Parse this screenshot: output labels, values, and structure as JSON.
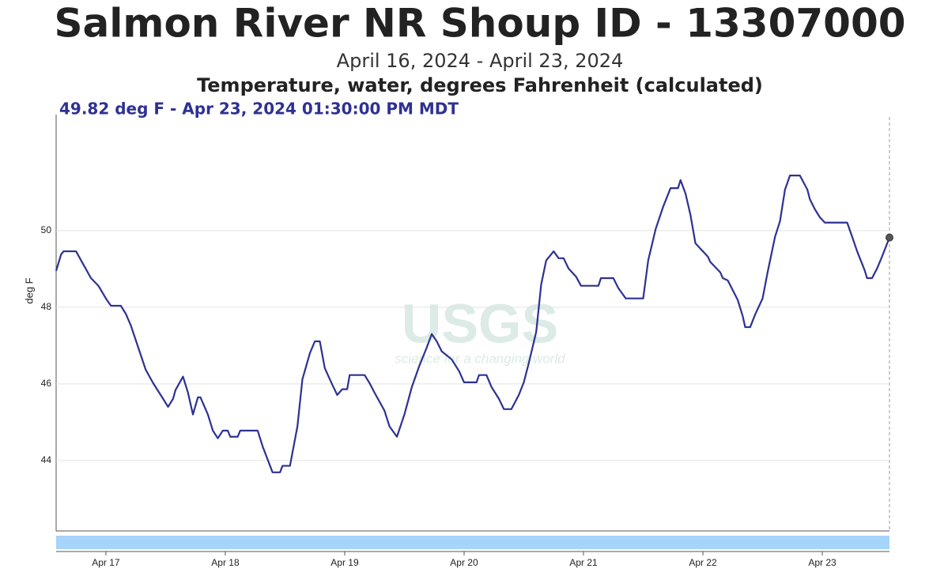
{
  "chart_data": {
    "type": "line",
    "title": "Salmon River NR Shoup ID - 13307000",
    "subtitle": "April 16, 2024 - April 23, 2024",
    "parameter": "Temperature, water, degrees Fahrenheit (calculated)",
    "annotation": "49.82 deg F - Apr 23, 2024 01:30:00 PM MDT",
    "watermark": "USGS",
    "watermark_tagline": "science for a changing world",
    "ylabel": "deg F",
    "color": "#2e3192",
    "grid": true,
    "ylim": [
      42.16,
      53.03
    ],
    "yticks": [
      44,
      46,
      48,
      50
    ],
    "xlim": [
      "2024-04-16T14:00",
      "2024-04-23T13:30"
    ],
    "xticks": [
      {
        "value": "2024-04-17T00:00",
        "label": "Apr 17"
      },
      {
        "value": "2024-04-18T00:00",
        "label": "Apr 18"
      },
      {
        "value": "2024-04-19T00:00",
        "label": "Apr 19"
      },
      {
        "value": "2024-04-20T00:00",
        "label": "Apr 20"
      },
      {
        "value": "2024-04-21T00:00",
        "label": "Apr 21"
      },
      {
        "value": "2024-04-22T00:00",
        "label": "Apr 22"
      },
      {
        "value": "2024-04-23T00:00",
        "label": "Apr 23"
      }
    ],
    "x": [
      "2024-04-16T14:00",
      "2024-04-16T15:00",
      "2024-04-16T15:30",
      "2024-04-16T18:00",
      "2024-04-16T19:30",
      "2024-04-16T21:00",
      "2024-04-16T22:30",
      "2024-04-17T00:00",
      "2024-04-17T01:00",
      "2024-04-17T03:00",
      "2024-04-17T04:00",
      "2024-04-17T05:00",
      "2024-04-17T06:30",
      "2024-04-17T08:00",
      "2024-04-17T09:30",
      "2024-04-17T11:30",
      "2024-04-17T12:30",
      "2024-04-17T13:30",
      "2024-04-17T14:00",
      "2024-04-17T15:30",
      "2024-04-17T16:30",
      "2024-04-17T17:30",
      "2024-04-17T18:30",
      "2024-04-17T19:00",
      "2024-04-17T20:30",
      "2024-04-17T21:30",
      "2024-04-17T22:30",
      "2024-04-17T23:30",
      "2024-04-18T00:30",
      "2024-04-18T01:00",
      "2024-04-18T02:30",
      "2024-04-18T03:00",
      "2024-04-18T06:30",
      "2024-04-18T07:30",
      "2024-04-18T09:30",
      "2024-04-18T11:00",
      "2024-04-18T11:30",
      "2024-04-18T13:00",
      "2024-04-18T14:30",
      "2024-04-18T15:30",
      "2024-04-18T17:00",
      "2024-04-18T18:00",
      "2024-04-18T19:00",
      "2024-04-18T20:00",
      "2024-04-18T21:30",
      "2024-04-18T22:30",
      "2024-04-18T23:30",
      "2024-04-19T00:30",
      "2024-04-19T01:00",
      "2024-04-19T04:00",
      "2024-04-19T05:00",
      "2024-04-19T06:00",
      "2024-04-19T08:00",
      "2024-04-19T09:00",
      "2024-04-19T10:30",
      "2024-04-19T12:00",
      "2024-04-19T13:30",
      "2024-04-19T15:00",
      "2024-04-19T16:30",
      "2024-04-19T17:30",
      "2024-04-19T18:30",
      "2024-04-19T19:30",
      "2024-04-19T21:30",
      "2024-04-19T23:00",
      "2024-04-20T00:00",
      "2024-04-20T02:30",
      "2024-04-20T03:00",
      "2024-04-20T04:30",
      "2024-04-20T05:30",
      "2024-04-20T07:00",
      "2024-04-20T08:00",
      "2024-04-20T09:30",
      "2024-04-20T11:00",
      "2024-04-20T12:00",
      "2024-04-20T13:00",
      "2024-04-20T14:30",
      "2024-04-20T15:30",
      "2024-04-20T16:30",
      "2024-04-20T18:00",
      "2024-04-20T19:00",
      "2024-04-20T20:00",
      "2024-04-20T21:00",
      "2024-04-20T22:30",
      "2024-04-20T23:30",
      "2024-04-21T03:00",
      "2024-04-21T03:30",
      "2024-04-21T06:00",
      "2024-04-21T07:00",
      "2024-04-21T08:30",
      "2024-04-21T12:00",
      "2024-04-21T13:00",
      "2024-04-21T14:30",
      "2024-04-21T16:00",
      "2024-04-21T17:30",
      "2024-04-21T19:00",
      "2024-04-21T19:30",
      "2024-04-21T20:30",
      "2024-04-21T21:30",
      "2024-04-21T22:30",
      "2024-04-21T23:30",
      "2024-04-22T01:00",
      "2024-04-22T01:30",
      "2024-04-22T03:30",
      "2024-04-22T04:00",
      "2024-04-22T05:00",
      "2024-04-22T07:00",
      "2024-04-22T08:00",
      "2024-04-22T08:30",
      "2024-04-22T09:30",
      "2024-04-22T10:30",
      "2024-04-22T12:00",
      "2024-04-22T13:00",
      "2024-04-22T14:30",
      "2024-04-22T15:30",
      "2024-04-22T16:30",
      "2024-04-22T17:30",
      "2024-04-22T19:30",
      "2024-04-22T21:00",
      "2024-04-22T21:30",
      "2024-04-22T22:30",
      "2024-04-22T23:30",
      "2024-04-23T00:30",
      "2024-04-23T05:00",
      "2024-04-23T06:00",
      "2024-04-23T07:00",
      "2024-04-23T08:30",
      "2024-04-23T09:00",
      "2024-04-23T10:00",
      "2024-04-23T11:00",
      "2024-04-23T12:00",
      "2024-04-23T13:30"
    ],
    "values": [
      48.95,
      49.38,
      49.46,
      49.46,
      49.11,
      48.76,
      48.56,
      48.23,
      48.04,
      48.04,
      47.83,
      47.53,
      46.95,
      46.37,
      46.02,
      45.61,
      45.4,
      45.61,
      45.84,
      46.19,
      45.77,
      45.2,
      45.65,
      45.65,
      45.2,
      44.78,
      44.58,
      44.78,
      44.78,
      44.62,
      44.62,
      44.78,
      44.78,
      44.37,
      43.69,
      43.69,
      43.86,
      43.86,
      44.89,
      46.12,
      46.8,
      47.11,
      47.11,
      46.41,
      45.98,
      45.71,
      45.86,
      45.86,
      46.23,
      46.23,
      46.02,
      45.77,
      45.3,
      44.89,
      44.62,
      45.2,
      45.92,
      46.47,
      46.95,
      47.3,
      47.11,
      46.85,
      46.64,
      46.33,
      46.04,
      46.04,
      46.23,
      46.23,
      45.92,
      45.61,
      45.34,
      45.34,
      45.71,
      46.04,
      46.54,
      47.36,
      48.6,
      49.22,
      49.46,
      49.28,
      49.28,
      49.01,
      48.8,
      48.56,
      48.56,
      48.76,
      48.76,
      48.5,
      48.23,
      48.23,
      49.22,
      50.04,
      50.62,
      51.11,
      51.11,
      51.32,
      50.97,
      50.41,
      49.67,
      49.53,
      49.32,
      49.18,
      48.91,
      48.76,
      48.7,
      48.19,
      47.77,
      47.48,
      47.48,
      47.81,
      48.23,
      48.91,
      49.84,
      50.25,
      51.07,
      51.44,
      51.44,
      51.07,
      50.82,
      50.56,
      50.35,
      50.21,
      50.21,
      49.84,
      49.46,
      48.97,
      48.76,
      48.76,
      49.01,
      49.32,
      49.82
    ]
  }
}
